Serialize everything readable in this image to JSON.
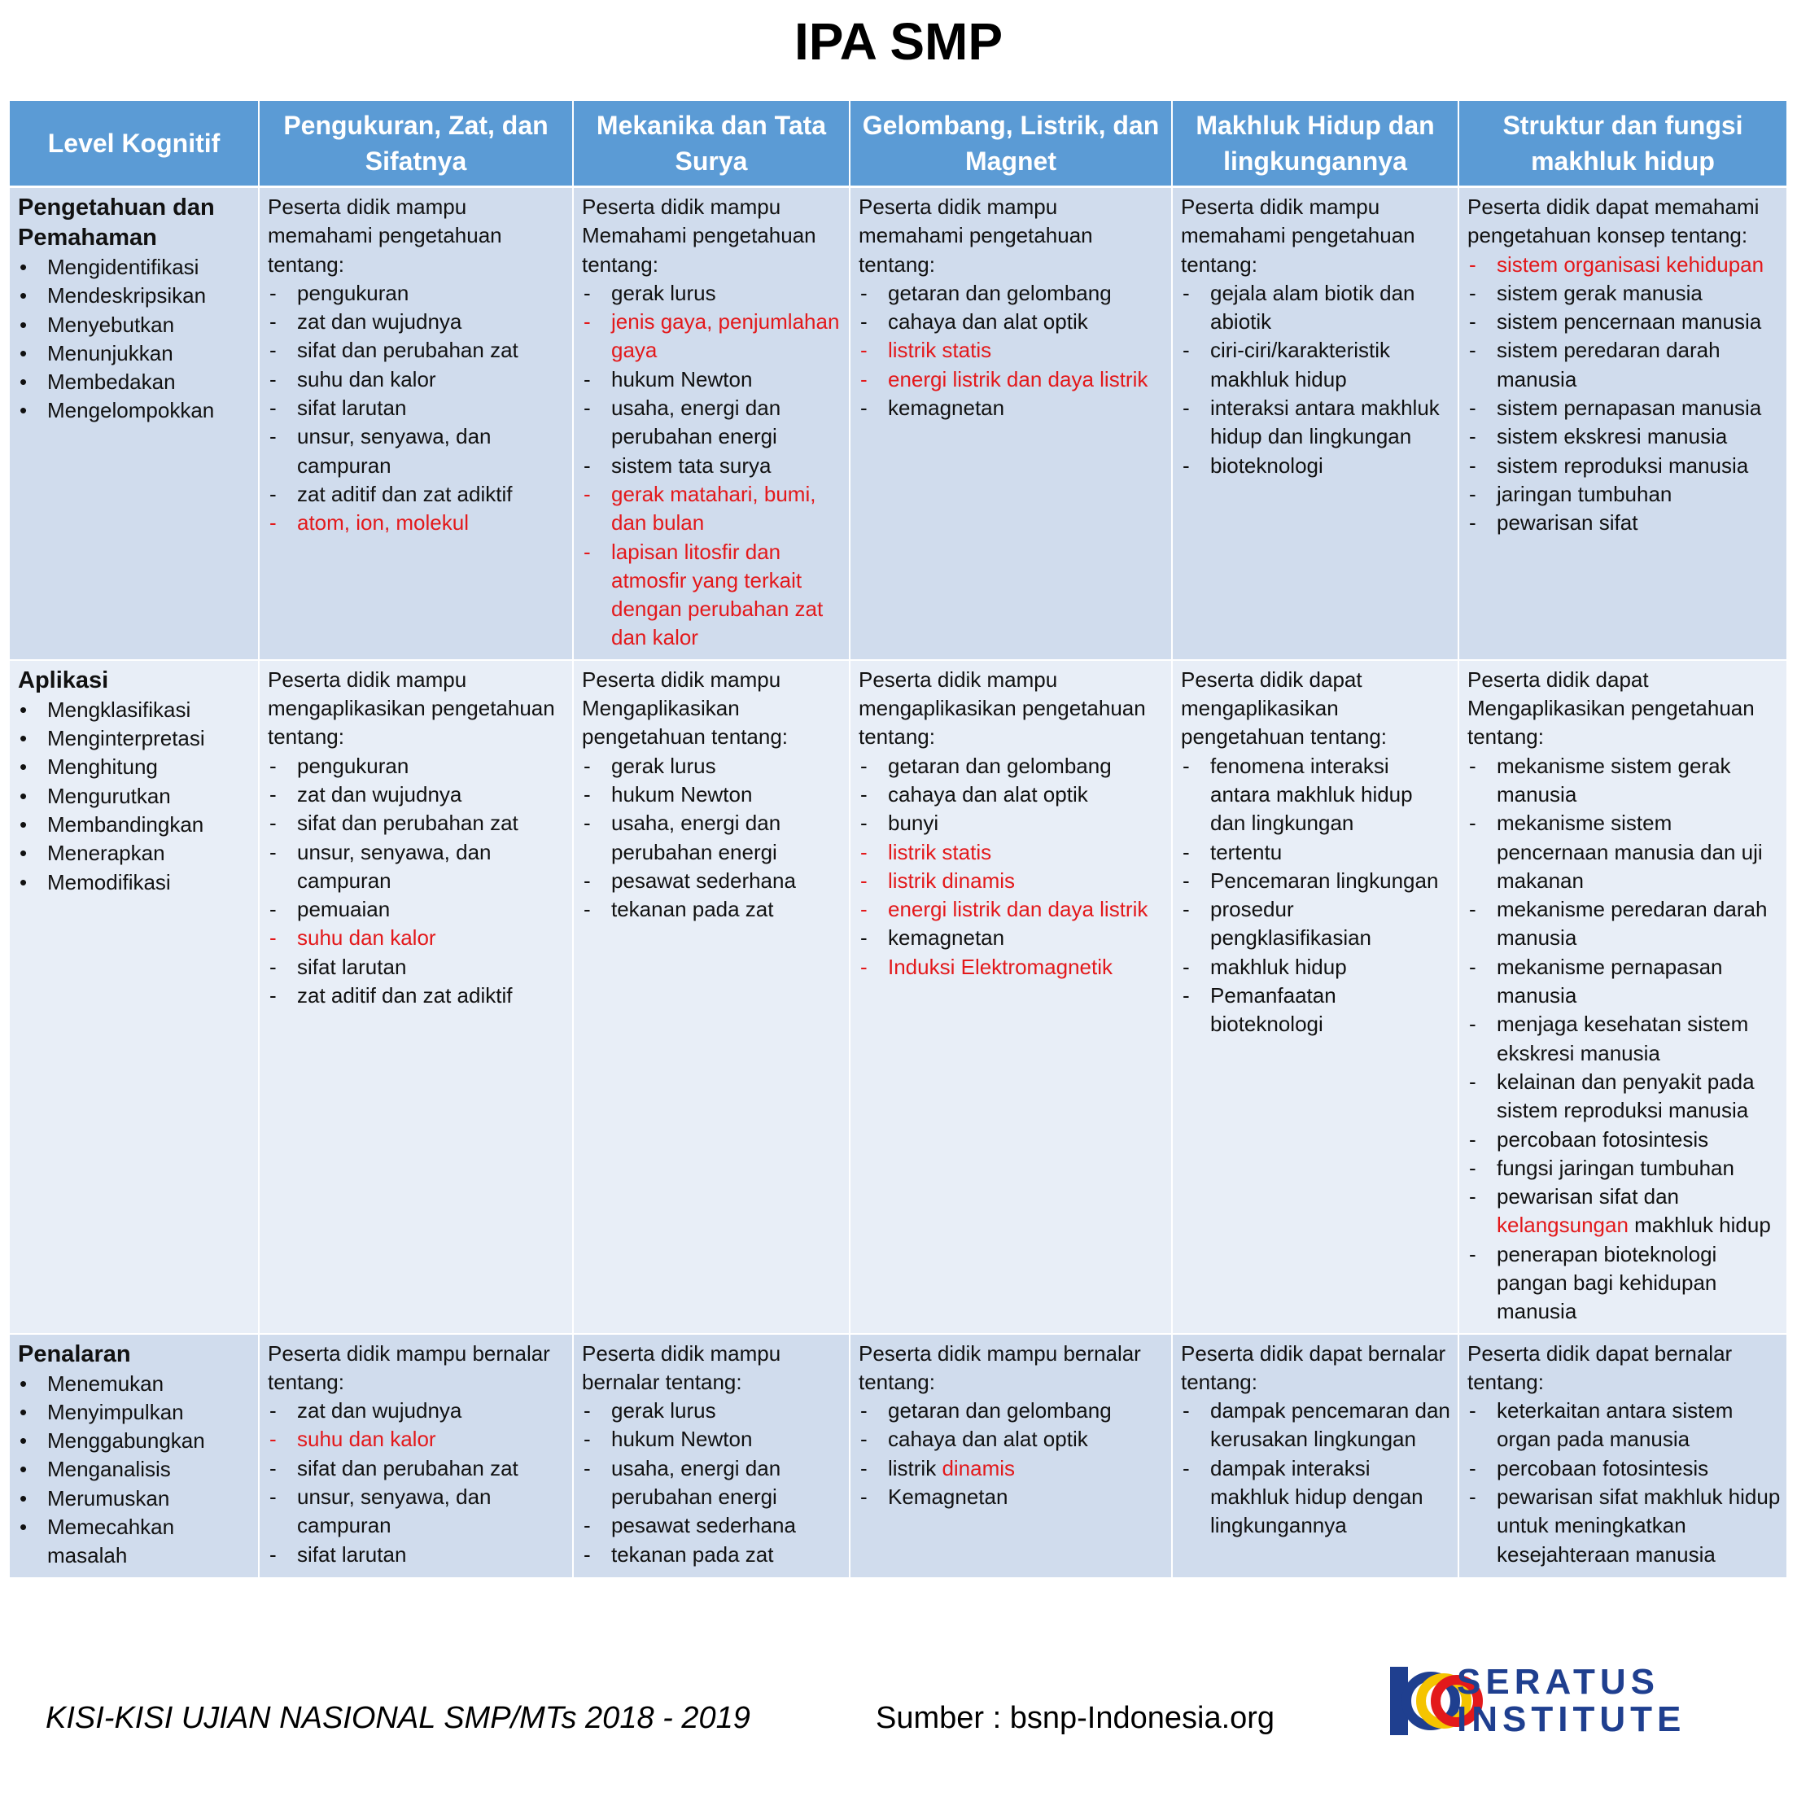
{
  "title": "IPA SMP",
  "headers": [
    "Level Kognitif",
    "Pengukuran, Zat, dan Sifatnya",
    "Mekanika dan Tata Surya",
    "Gelombang, Listrik, dan Magnet",
    "Makhluk Hidup dan lingkungannya",
    "Struktur dan fungsi makhluk hidup"
  ],
  "rows": [
    {
      "level": "Pengetahuan dan Pemahaman",
      "verbs": [
        "Mengidentifikasi",
        "Mendeskripsikan",
        "Menyebutkan",
        "Menunjukkan",
        "Membedakan",
        "Mengelompokkan"
      ],
      "cells": [
        {
          "intro": "Peserta didik mampu memahami pengetahuan tentang:",
          "items": [
            {
              "text": "pengukuran",
              "red": false
            },
            {
              "text": "zat dan wujudnya",
              "red": false
            },
            {
              "text": "sifat dan perubahan zat",
              "red": false
            },
            {
              "text": "suhu dan kalor",
              "red": false
            },
            {
              "text": "sifat larutan",
              "red": false
            },
            {
              "text": "unsur, senyawa, dan campuran",
              "red": false
            },
            {
              "text": "zat aditif dan zat adiktif",
              "red": false
            },
            {
              "text": "atom, ion, molekul",
              "red": true
            }
          ]
        },
        {
          "intro": "Peserta didik mampu Memahami pengetahuan tentang:",
          "items": [
            {
              "text": "gerak lurus",
              "red": false
            },
            {
              "text": "jenis gaya, penjumlahan gaya",
              "red": true
            },
            {
              "text": "hukum Newton",
              "red": false
            },
            {
              "text": "usaha, energi dan perubahan energi",
              "red": false
            },
            {
              "text": "sistem tata surya",
              "red": false
            },
            {
              "text": "gerak matahari, bumi, dan bulan",
              "red": true
            },
            {
              "text": "lapisan litosfir dan atmosfir yang terkait dengan perubahan zat dan kalor",
              "red": true
            }
          ]
        },
        {
          "intro": "Peserta didik mampu memahami pengetahuan tentang:",
          "items": [
            {
              "text": "getaran dan gelombang",
              "red": false
            },
            {
              "text": "cahaya dan alat optik",
              "red": false
            },
            {
              "text": "listrik statis",
              "red": true
            },
            {
              "text": "energi listrik dan daya listrik",
              "red": true
            },
            {
              "text": "kemagnetan",
              "red": false
            }
          ]
        },
        {
          "intro": "Peserta didik mampu memahami pengetahuan tentang:",
          "items": [
            {
              "text": "gejala alam biotik dan abiotik",
              "red": false
            },
            {
              "text": "ciri-ciri/karakteristik makhluk hidup",
              "red": false
            },
            {
              "text": "interaksi antara makhluk hidup dan lingkungan",
              "red": false
            },
            {
              "text": "bioteknologi",
              "red": false
            }
          ]
        },
        {
          "intro": "Peserta didik dapat memahami pengetahuan konsep tentang:",
          "items": [
            {
              "text": "sistem organisasi kehidupan",
              "red": true
            },
            {
              "text": "sistem gerak manusia",
              "red": false
            },
            {
              "text": "sistem pencernaan manusia",
              "red": false
            },
            {
              "text": "sistem peredaran darah manusia",
              "red": false
            },
            {
              "text": "sistem pernapasan manusia",
              "red": false
            },
            {
              "text": "sistem ekskresi manusia",
              "red": false
            },
            {
              "text": "sistem reproduksi manusia",
              "red": false
            },
            {
              "text": "jaringan tumbuhan",
              "red": false
            },
            {
              "text": "pewarisan sifat",
              "red": false
            }
          ]
        }
      ]
    },
    {
      "level": "Aplikasi",
      "verbs": [
        "Mengklasifikasi",
        "Menginterpretasi",
        "Menghitung",
        "Mengurutkan",
        "Membandingkan",
        "Menerapkan",
        "Memodifikasi"
      ],
      "cells": [
        {
          "intro": "Peserta didik mampu mengaplikasikan pengetahuan tentang:",
          "items": [
            {
              "text": "pengukuran",
              "red": false
            },
            {
              "text": "zat dan wujudnya",
              "red": false
            },
            {
              "text": "sifat dan perubahan zat",
              "red": false
            },
            {
              "text": "unsur, senyawa, dan campuran",
              "red": false
            },
            {
              "text": "pemuaian",
              "red": false
            },
            {
              "text": "suhu dan kalor",
              "red": true
            },
            {
              "text": "sifat larutan",
              "red": false
            },
            {
              "text": "zat aditif dan zat adiktif",
              "red": false
            }
          ]
        },
        {
          "intro": "Peserta didik mampu Mengaplikasikan pengetahuan tentang:",
          "items": [
            {
              "text": "gerak lurus",
              "red": false
            },
            {
              "text": "hukum Newton",
              "red": false
            },
            {
              "text": "usaha, energi dan perubahan energi",
              "red": false
            },
            {
              "text": "pesawat sederhana",
              "red": false
            },
            {
              "text": "tekanan pada zat",
              "red": false
            }
          ]
        },
        {
          "intro": "Peserta didik mampu mengaplikasikan pengetahuan tentang:",
          "items": [
            {
              "text": "getaran dan gelombang",
              "red": false
            },
            {
              "text": "cahaya dan alat optik",
              "red": false
            },
            {
              "text": "bunyi",
              "red": false
            },
            {
              "text": "listrik statis",
              "red": true
            },
            {
              "text": "listrik dinamis",
              "red": true
            },
            {
              "text": "energi listrik dan daya listrik",
              "red": true
            },
            {
              "text": "kemagnetan",
              "red": false
            },
            {
              "text": "Induksi Elektromagnetik",
              "red": true
            }
          ]
        },
        {
          "intro": "Peserta didik dapat mengaplikasikan pengetahuan tentang:",
          "items": [
            {
              "text": "fenomena interaksi antara makhluk hidup dan lingkungan",
              "red": false
            },
            {
              "text": "tertentu",
              "red": false
            },
            {
              "text": "Pencemaran lingkungan",
              "red": false
            },
            {
              "text": "prosedur pengklasifikasian",
              "red": false
            },
            {
              "text": "makhluk hidup",
              "red": false
            },
            {
              "text": "Pemanfaatan bioteknologi",
              "red": false
            }
          ]
        },
        {
          "intro": "Peserta didik dapat Mengaplikasikan pengetahuan tentang:",
          "items": [
            {
              "text": "mekanisme sistem gerak manusia",
              "red": false
            },
            {
              "text": "mekanisme sistem pencernaan manusia dan uji makanan",
              "red": false
            },
            {
              "text": "mekanisme peredaran darah manusia",
              "red": false
            },
            {
              "text": "mekanisme pernapasan manusia",
              "red": false
            },
            {
              "text": "menjaga kesehatan sistem ekskresi manusia",
              "red": false
            },
            {
              "text": "kelainan dan penyakit pada sistem reproduksi manusia",
              "red": false
            },
            {
              "text": "percobaan fotosintesis",
              "red": false
            },
            {
              "text": "fungsi jaringan tumbuhan",
              "red": false
            },
            {
              "text": "pewarisan sifat dan ",
              "red": false,
              "red_part": "kelangsungan",
              "tail": " makhluk hidup"
            },
            {
              "text": "penerapan bioteknologi pangan bagi kehidupan manusia",
              "red": false
            }
          ]
        }
      ]
    },
    {
      "level": "Penalaran",
      "verbs": [
        "Menemukan",
        "Menyimpulkan",
        "Menggabungkan",
        "Menganalisis",
        "Merumuskan",
        "Memecahkan masalah"
      ],
      "cells": [
        {
          "intro": "Peserta didik mampu bernalar tentang:",
          "items": [
            {
              "text": "zat dan wujudnya",
              "red": false
            },
            {
              "text": "suhu dan kalor",
              "red": true
            },
            {
              "text": "sifat dan perubahan zat",
              "red": false
            },
            {
              "text": "unsur, senyawa, dan campuran",
              "red": false
            },
            {
              "text": "sifat larutan",
              "red": false
            }
          ]
        },
        {
          "intro": "Peserta didik mampu bernalar tentang:",
          "items": [
            {
              "text": "gerak lurus",
              "red": false
            },
            {
              "text": "hukum Newton",
              "red": false
            },
            {
              "text": "usaha, energi dan perubahan energi",
              "red": false
            },
            {
              "text": "pesawat sederhana",
              "red": false
            },
            {
              "text": "tekanan pada zat",
              "red": false
            }
          ]
        },
        {
          "intro": "Peserta didik mampu bernalar tentang:",
          "items": [
            {
              "text": "getaran dan gelombang",
              "red": false
            },
            {
              "text": "cahaya dan alat optik",
              "red": false
            },
            {
              "text": "listrik ",
              "red": false,
              "red_part": "dinamis",
              "tail": ""
            },
            {
              "text": "Kemagnetan",
              "red": false
            }
          ]
        },
        {
          "intro": "Peserta didik dapat bernalar tentang:",
          "items": [
            {
              "text": "dampak pencemaran dan kerusakan lingkungan",
              "red": false
            },
            {
              "text": "dampak interaksi makhluk hidup dengan lingkungannya",
              "red": false
            }
          ]
        },
        {
          "intro": "Peserta didik dapat bernalar tentang:",
          "items": [
            {
              "text": "keterkaitan antara sistem organ pada manusia",
              "red": false
            },
            {
              "text": "percobaan fotosintesis",
              "red": false
            },
            {
              "text": "pewarisan sifat makhluk hidup untuk meningkatkan kesejahteraan manusia",
              "red": false
            }
          ]
        }
      ]
    }
  ],
  "footer": {
    "left": "KISI-KISI UJIAN NASIONAL SMP/MTs 2018 - 2019",
    "source": "Sumber : bsnp-Indonesia.org"
  },
  "logo": {
    "line1": "SERATUS",
    "line2": "INSTITUTE",
    "colors": {
      "blue": "#1f3f8f",
      "red": "#e3191b",
      "yellow": "#f5c400"
    }
  },
  "colors": {
    "header": "#5b9bd5",
    "row_dark": "#d0dced",
    "row_light": "#e8eef7",
    "highlight": "#e3191b"
  }
}
